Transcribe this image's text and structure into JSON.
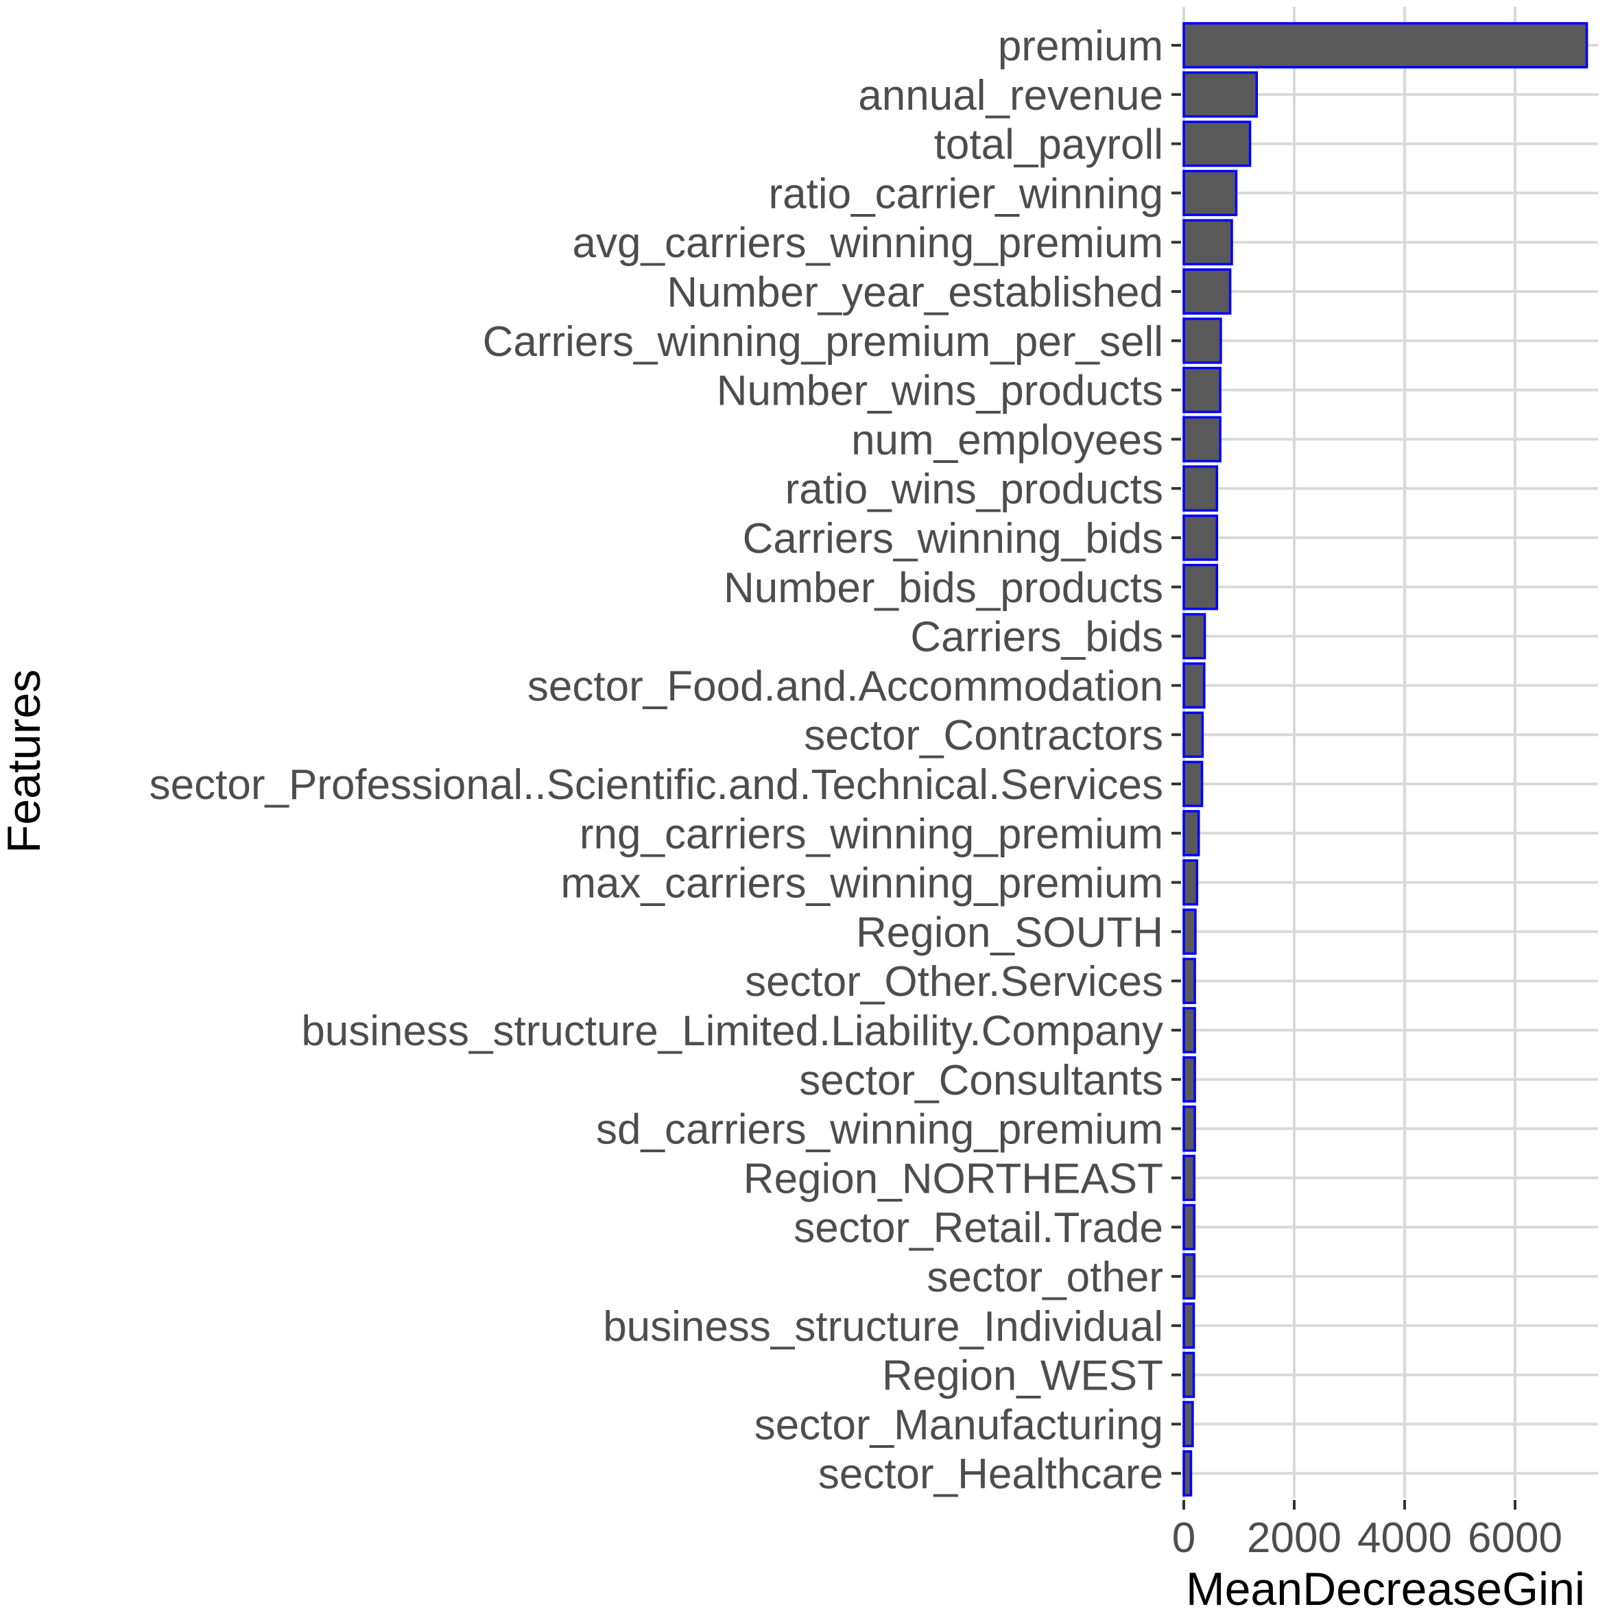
{
  "chart_data": {
    "type": "bar",
    "orientation": "horizontal",
    "xlabel": "MeanDecreaseGini",
    "ylabel": "Features",
    "xlim": [
      0,
      7400
    ],
    "xticks": [
      0,
      2000,
      4000,
      6000
    ],
    "xtick_labels": [
      "0",
      "2000",
      "4000",
      "6000"
    ],
    "grid": true,
    "legend": "none",
    "colors": {
      "bar_fill": "#595959",
      "bar_border": "#0000ff",
      "grid": "#d9d9d9"
    },
    "categories": [
      "premium",
      "annual_revenue",
      "total_payroll",
      "ratio_carrier_winning",
      "avg_carriers_winning_premium",
      "Number_year_established",
      "Carriers_winning_premium_per_sell",
      "Number_wins_products",
      "num_employees",
      "ratio_wins_products",
      "Carriers_winning_bids",
      "Number_bids_products",
      "Carriers_bids",
      "sector_Food.and.Accommodation",
      "sector_Contractors",
      "sector_Professional..Scientific.and.Technical.Services",
      "rng_carriers_winning_premium",
      "max_carriers_winning_premium",
      "Region_SOUTH",
      "sector_Other.Services",
      "business_structure_Limited.Liability.Company",
      "sector_Consultants",
      "sd_carriers_winning_premium",
      "Region_NORTHEAST",
      "sector_Retail.Trade",
      "sector_other",
      "business_structure_Individual",
      "Region_WEST",
      "sector_Manufacturing",
      "sector_Healthcare"
    ],
    "values": [
      7300,
      1320,
      1200,
      950,
      870,
      840,
      670,
      660,
      660,
      600,
      600,
      600,
      380,
      370,
      340,
      330,
      270,
      240,
      210,
      200,
      200,
      200,
      200,
      190,
      190,
      190,
      180,
      180,
      160,
      130
    ]
  }
}
